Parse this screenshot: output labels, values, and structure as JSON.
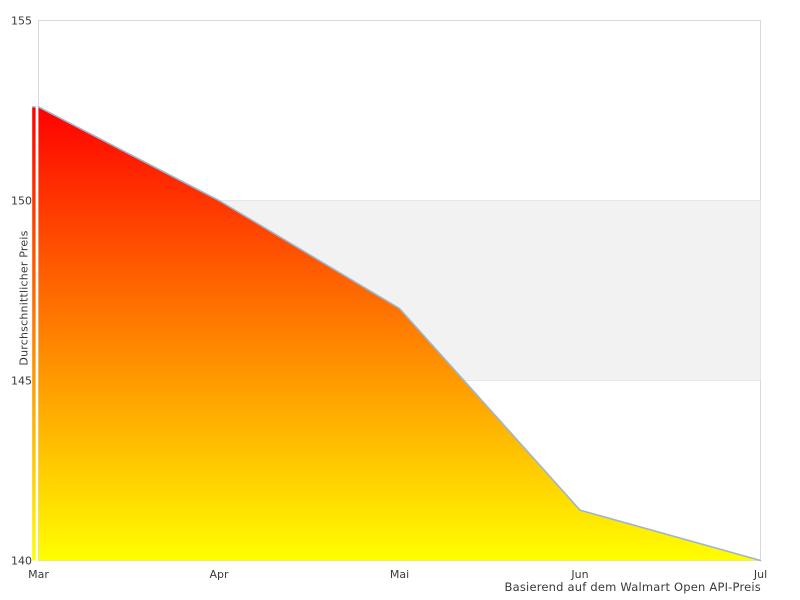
{
  "chart_data": {
    "type": "area",
    "title": "",
    "categories": [
      "Mar",
      "Apr",
      "Mai",
      "Jun",
      "Jul"
    ],
    "values": [
      152.6,
      150.0,
      147.0,
      141.4,
      140.0
    ],
    "xlabel": "",
    "ylabel": "Durchschnittlicher Preis",
    "caption": "Basierend auf dem Walmart Open API-Preis",
    "ylim": [
      140,
      155
    ],
    "yticks": [
      155,
      150,
      145,
      140
    ],
    "shaded_band": {
      "from": 145,
      "to": 150
    },
    "grid": false,
    "legend": false,
    "colors": {
      "line": "#9cb6d0",
      "area_gradient_top": "#ff0000",
      "area_gradient_mid": "#ff8000",
      "area_gradient_bottom": "#ffff00",
      "band_fill": "#f2f2f2",
      "band_edge": "#e7e7e7",
      "plot_border": "#d9d9d9",
      "text": "#3a3a3a"
    }
  }
}
